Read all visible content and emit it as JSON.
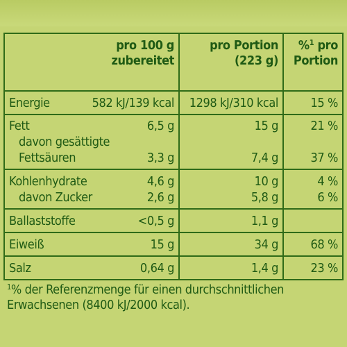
{
  "header": {
    "col1_line1": "pro 100 g",
    "col1_line2": "zubereitet",
    "col2_line1": "pro Portion",
    "col2_line2": "(223 g)",
    "col3_line1_sup": "1",
    "col3_line1_pre": "%",
    "col3_line1_post": " pro",
    "col3_line2": "Portion"
  },
  "rows": [
    {
      "label": "Energie",
      "per100": "582 kJ/139 kcal",
      "portion": "1298 kJ/310 kcal",
      "pct": "15 %"
    },
    {
      "label": "Fett",
      "per100": "6,5 g",
      "portion": "15 g",
      "pct": "21 %"
    },
    {
      "label": "davon gesättigte",
      "per100": "",
      "portion": "",
      "pct": ""
    },
    {
      "label": "Fettsäuren",
      "per100": "3,3 g",
      "portion": "7,4 g",
      "pct": "37 %"
    },
    {
      "label": "Kohlenhydrate",
      "per100": "4,6 g",
      "portion": "10 g",
      "pct": "4 %"
    },
    {
      "label": "davon Zucker",
      "per100": "2,6 g",
      "portion": "5,8 g",
      "pct": "6 %"
    },
    {
      "label": "Ballaststoffe",
      "per100": "<0,5 g",
      "portion": "1,1 g",
      "pct": ""
    },
    {
      "label": "Eiweiß",
      "per100": "15 g",
      "portion": "34 g",
      "pct": "68 %"
    },
    {
      "label": "Salz",
      "per100": "0,64 g",
      "portion": "1,4 g",
      "pct": "23 %"
    }
  ],
  "footnote": {
    "sup": "1",
    "line1": "% der Referenzmenge für einen durchschnittlichen",
    "line2": "Erwachsenen (8400 kJ/2000 kcal)."
  },
  "colors": {
    "background": "#c5d574",
    "text": "#1f5a14",
    "border": "#2f6b18"
  }
}
